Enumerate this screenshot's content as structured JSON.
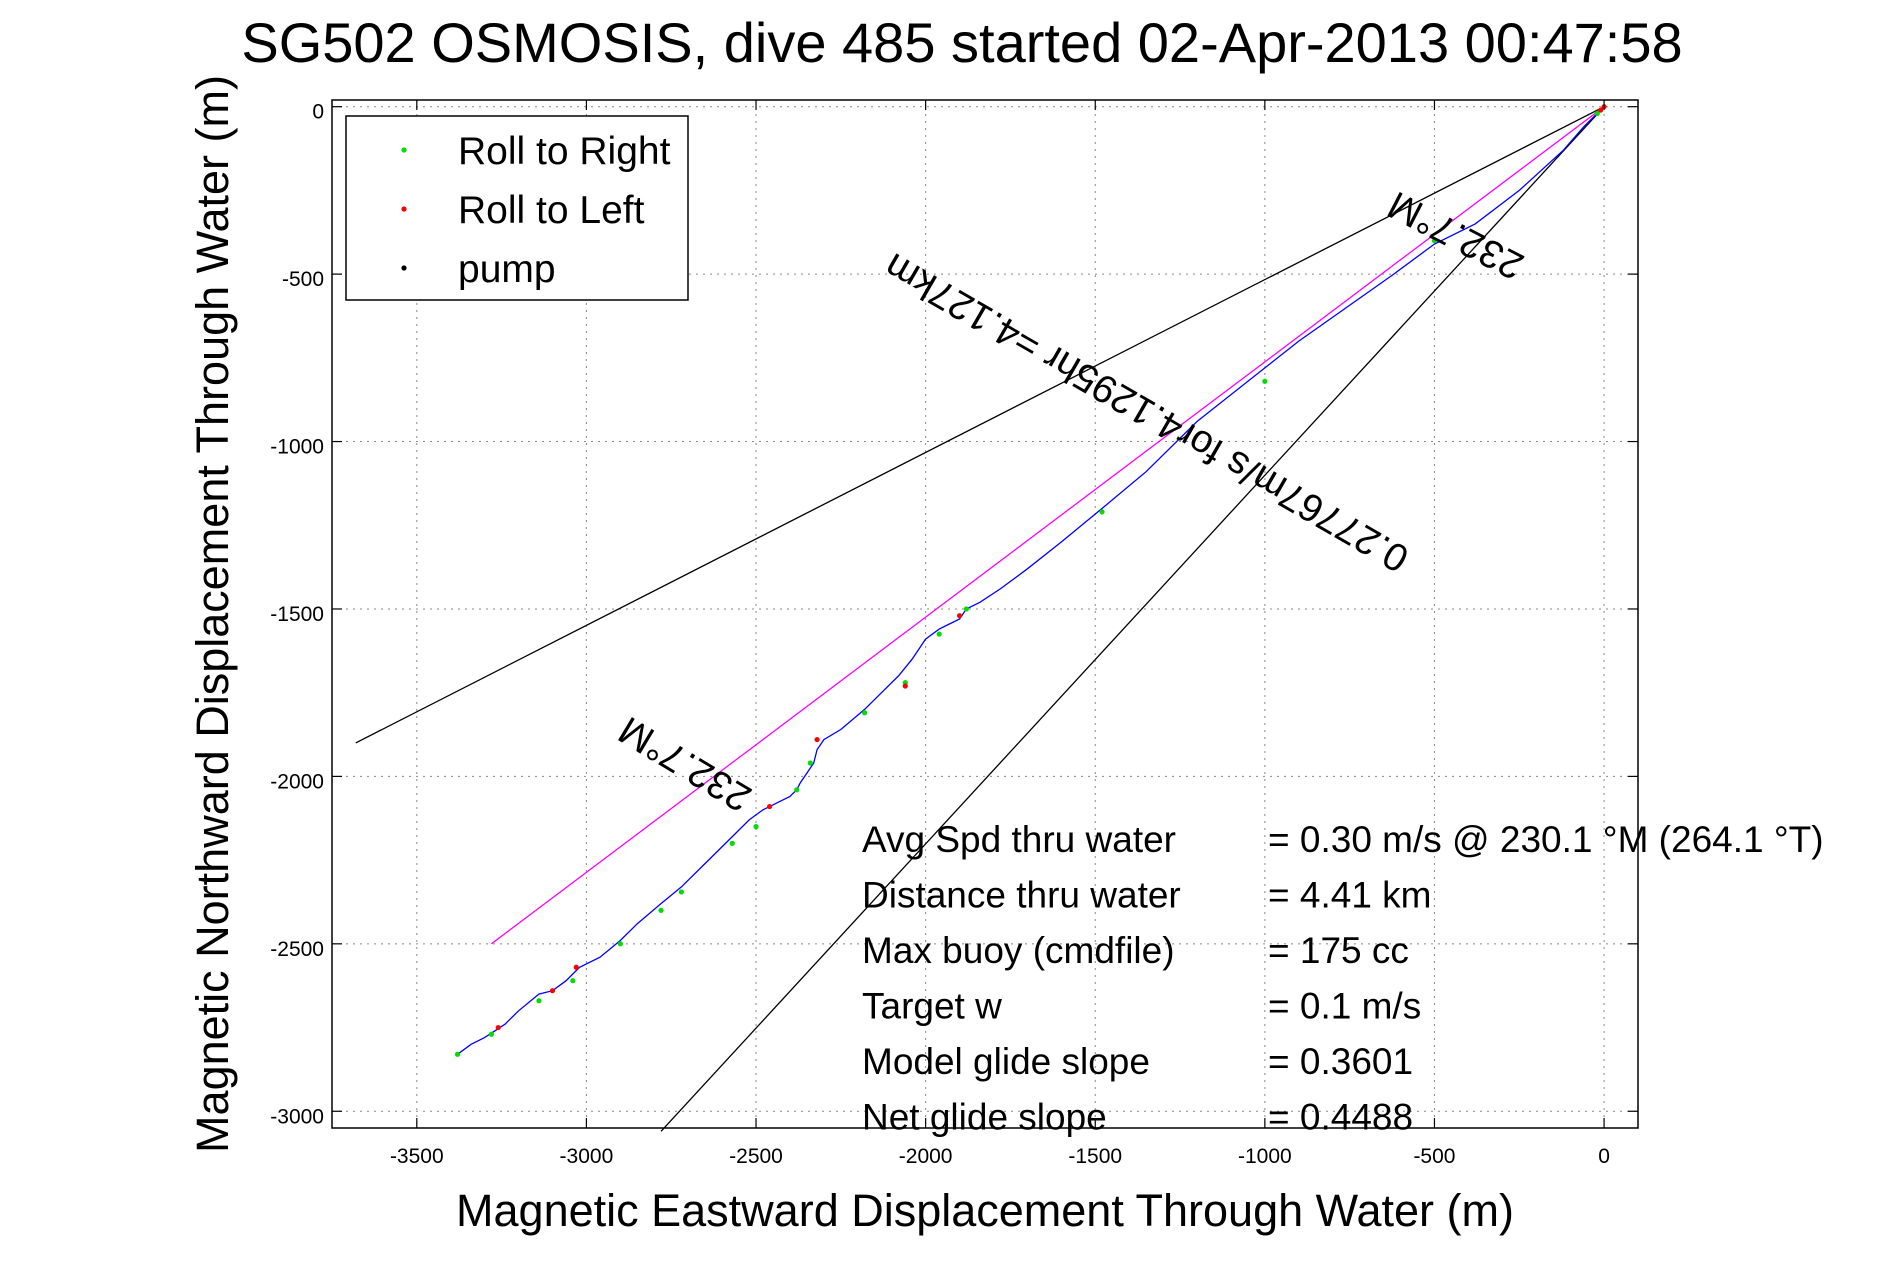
{
  "chart_data": {
    "type": "line",
    "title": "SG502 OSMOSIS, dive 485 started 02-Apr-2013 00:47:58",
    "xlabel": "Magnetic Eastward Displacement Through Water (m)",
    "ylabel": "Magnetic Northward Displacement Through Water (m)",
    "xlim": [
      -3750,
      100
    ],
    "ylim": [
      -3050,
      20
    ],
    "x_ticks": [
      -3500,
      -3000,
      -2500,
      -2000,
      -1500,
      -1000,
      -500,
      0
    ],
    "y_ticks": [
      0,
      -500,
      -1000,
      -1500,
      -2000,
      -2500,
      -3000
    ],
    "x_tick_labels": [
      "-3500",
      "-3000",
      "-2500",
      "-2000",
      "-1500",
      "-1000",
      "-500",
      "0"
    ],
    "y_tick_labels": [
      "0",
      "-500",
      "-1000",
      "-1500",
      "-2000",
      "-2500",
      "-3000"
    ],
    "grid": true,
    "legend_position": "top-left",
    "legend": [
      {
        "label": "Roll to Right",
        "color": "#00dd00"
      },
      {
        "label": "Roll to Left",
        "color": "#ff0000"
      },
      {
        "label": "pump",
        "color": "#000000"
      }
    ],
    "track": {
      "name": "",
      "color": "#0000ff",
      "x": [
        0,
        -20,
        -60,
        -120,
        -250,
        -380,
        -500,
        -620,
        -760,
        -900,
        -1050,
        -1200,
        -1350,
        -1480,
        -1600,
        -1700,
        -1780,
        -1840,
        -1880,
        -1900,
        -1930,
        -1960,
        -2000,
        -2040,
        -2080,
        -2120,
        -2180,
        -2250,
        -2300,
        -2320,
        -2330,
        -2350,
        -2370,
        -2380,
        -2400,
        -2440,
        -2480,
        -2520,
        -2580,
        -2650,
        -2720,
        -2780,
        -2850,
        -2900,
        -2960,
        -3020,
        -3040,
        -3060,
        -3100,
        -3140,
        -3200,
        -3240,
        -3270,
        -3300,
        -3340,
        -3380
      ],
      "y": [
        0,
        -20,
        -60,
        -130,
        -250,
        -350,
        -410,
        -500,
        -600,
        -700,
        -820,
        -940,
        -1090,
        -1200,
        -1300,
        -1380,
        -1440,
        -1480,
        -1500,
        -1530,
        -1545,
        -1560,
        -1590,
        -1650,
        -1700,
        -1740,
        -1800,
        -1860,
        -1890,
        -1920,
        -1960,
        -1990,
        -2020,
        -2040,
        -2060,
        -2080,
        -2100,
        -2130,
        -2190,
        -2260,
        -2330,
        -2380,
        -2440,
        -2490,
        -2540,
        -2570,
        -2590,
        -2610,
        -2640,
        -2650,
        -2700,
        -2740,
        -2760,
        -2780,
        -2800,
        -2830
      ]
    },
    "roll_right_points": {
      "x": [
        -20,
        -500,
        -1000,
        -1480,
        -1880,
        -1960,
        -2060,
        -2180,
        -2340,
        -2380,
        -2500,
        -2570,
        -2720,
        -2780,
        -2900,
        -3040,
        -3140,
        -3280,
        -3380
      ],
      "y": [
        -20,
        -400,
        -820,
        -1210,
        -1500,
        -1575,
        -1720,
        -1810,
        -1960,
        -2040,
        -2150,
        -2200,
        -2345,
        -2400,
        -2500,
        -2610,
        -2670,
        -2770,
        -2830
      ]
    },
    "roll_left_points": {
      "x": [
        0,
        -10,
        -1900,
        -2060,
        -2320,
        -2460,
        -3030,
        -3100,
        -3260
      ],
      "y": [
        0,
        -10,
        -1520,
        -1730,
        -1890,
        -2090,
        -2570,
        -2640,
        -2750
      ]
    },
    "reference_lines": [
      {
        "name": "",
        "color": "#000000",
        "x": [
          0,
          -3680
        ],
        "y": [
          0,
          -1900
        ]
      },
      {
        "name": "",
        "color": "#000000",
        "x": [
          0,
          -2780
        ],
        "y": [
          0,
          -3060
        ]
      },
      {
        "name": "",
        "color": "#ff00ff",
        "x": [
          0,
          -3280
        ],
        "y": [
          0,
          -2500
        ]
      }
    ],
    "annotations": [
      {
        "text": "232.7°M",
        "x": -420,
        "y": -350,
        "rotation_deg": 207.3
      },
      {
        "text": "0.27767m/s for4.1295hr =4.127km",
        "x": -1330,
        "y": -880,
        "rotation_deg": 210
      },
      {
        "text": "232.7°M",
        "x": -2690,
        "y": -1930,
        "rotation_deg": 211
      }
    ],
    "stats": [
      {
        "label": "Avg Spd thru water",
        "value": "=  0.30 m/s @ 230.1 °M (264.1 °T)"
      },
      {
        "label": "Distance thru water",
        "value": "=  4.41 km"
      },
      {
        "label": "Max buoy (cmdfile)",
        "value": "= 175 cc"
      },
      {
        "label": "Target w",
        "value": "= 0.1 m/s"
      },
      {
        "label": "Model glide slope",
        "value": "= 0.3601"
      },
      {
        "label": "Net glide slope",
        "value": "= 0.4488"
      }
    ]
  }
}
